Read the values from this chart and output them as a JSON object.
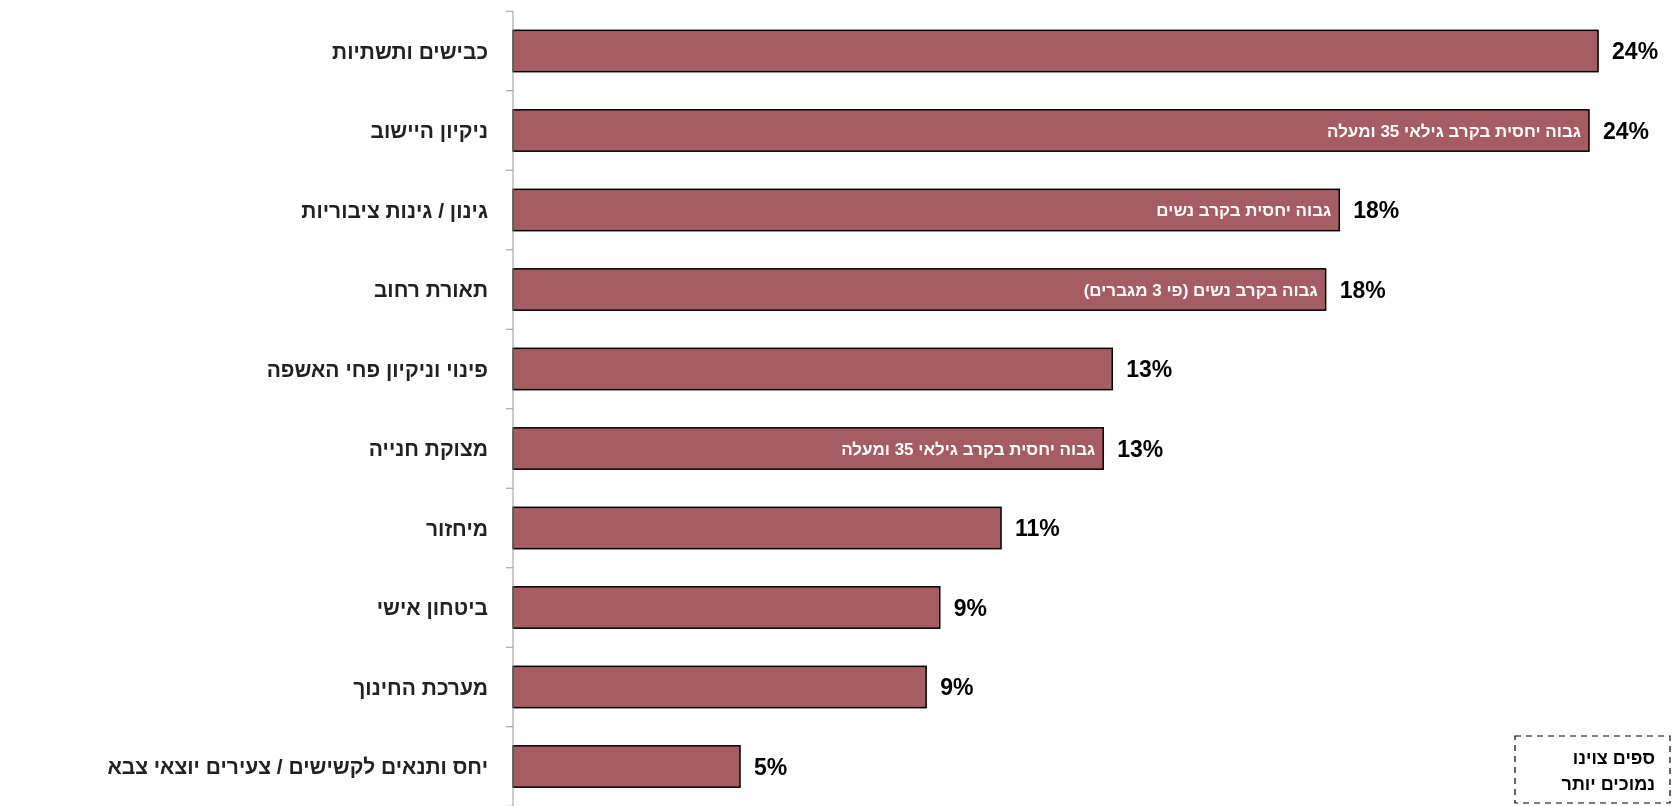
{
  "chart_data": {
    "type": "bar",
    "orientation": "horizontal",
    "categories": [
      "כבישים ותשתיות",
      "ניקיון היישוב",
      "גינון / גינות ציבוריות",
      "תאורת רחוב",
      "פינוי וניקיון פחי האשפה",
      "מצוקת חנייה",
      "מיחזור",
      "ביטחון אישי",
      "מערכת החינוך",
      "יחס ותנאים לקשישים / צעירים יוצאי צבא"
    ],
    "values": [
      23.9,
      23.7,
      18.2,
      17.9,
      13.2,
      13.0,
      10.75,
      9.4,
      9.1,
      5.0
    ],
    "value_labels": [
      "24%",
      "24%",
      "18%",
      "18%",
      "13%",
      "13%",
      "11%",
      "9%",
      "9%",
      "5%"
    ],
    "color": "#a65c63",
    "annotations": [
      {
        "text": "גבוה יחסית בקרב גילאי 35 ומעלה",
        "x": 23.7,
        "y": "ניקיון היישוב"
      },
      {
        "text": "גבוה יחסית בקרב נשים",
        "x": 18.2,
        "y": "גינון / גינות ציבוריות"
      },
      {
        "text": "גבוה בקרב נשים (פי 3 מגברים)",
        "x": 17.9,
        "y": "תאורת רחוב"
      },
      {
        "text": "גבוה יחסית בקרב גילאי 35 ומעלה",
        "x": 13.0,
        "y": "מצוקת חנייה"
      },
      "ספים צוינו",
      "נמוכים יותר"
    ]
  }
}
